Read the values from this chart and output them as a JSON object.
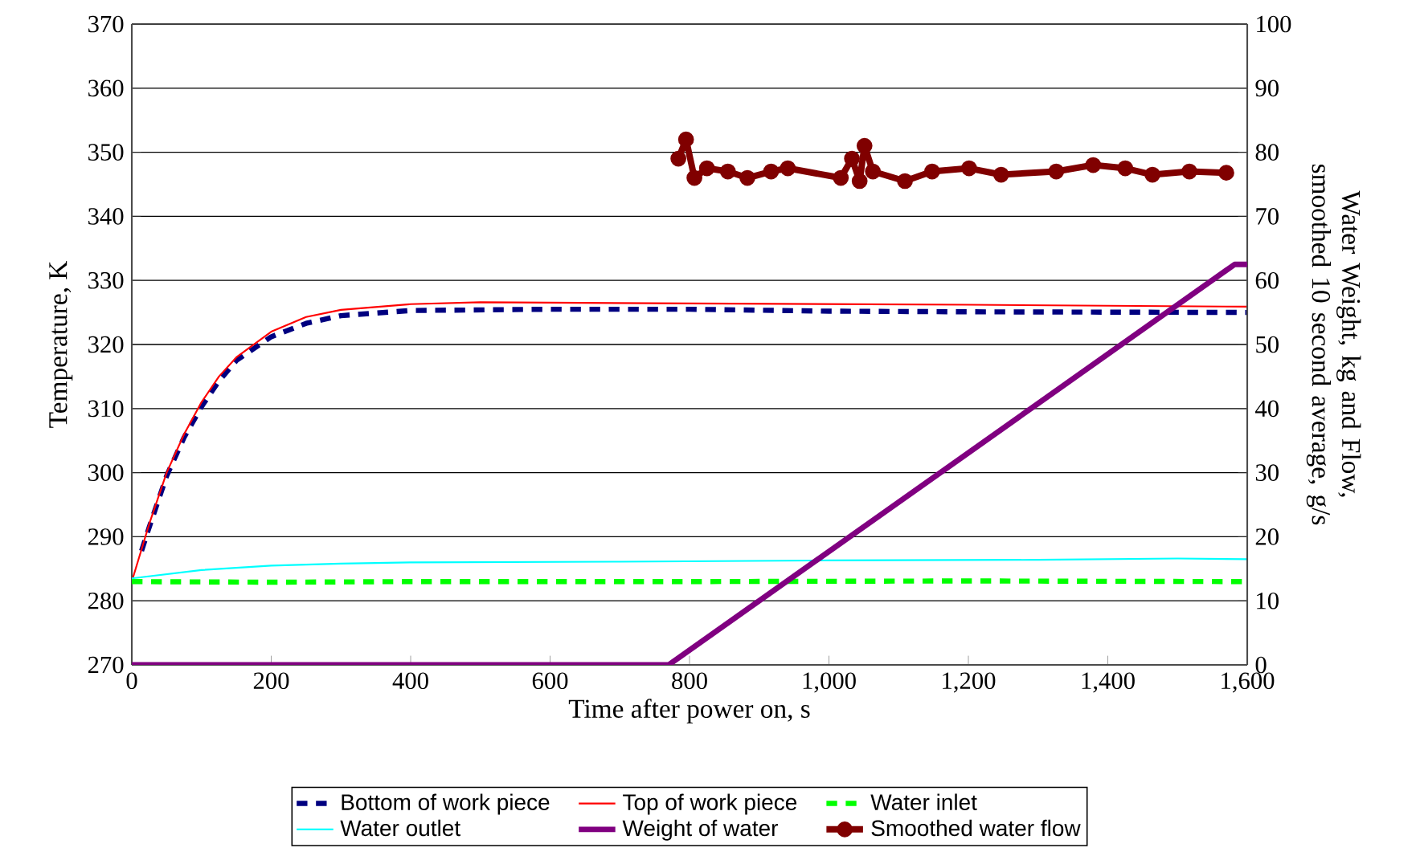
{
  "chart_data": {
    "type": "line",
    "xlabel": "Time after power on, s",
    "ylabel": "Temperature, K",
    "y2label": "Water Weight, kg and Flow, smoothed 10 second average, g/s",
    "xlim": [
      0,
      1600
    ],
    "xticks": [
      0,
      200,
      400,
      600,
      800,
      {
        "value": 1000,
        "label": "1,000"
      },
      {
        "value": 1200,
        "label": "1,200"
      },
      {
        "value": 1400,
        "label": "1,400"
      },
      {
        "value": 1600,
        "label": "1,600"
      }
    ],
    "ylim": [
      270,
      370
    ],
    "yticks": [
      270,
      280,
      290,
      300,
      310,
      320,
      330,
      340,
      350,
      360,
      370
    ],
    "y2lim": [
      0,
      100
    ],
    "y2ticks": [
      0,
      10,
      20,
      30,
      40,
      50,
      60,
      70,
      80,
      90,
      100
    ],
    "grid": "y",
    "legend": "bottom",
    "series": [
      {
        "name": "Bottom of work piece",
        "color": "#000080",
        "line_style": "dashed",
        "x": [
          14,
          25,
          50,
          75,
          100,
          125,
          150,
          200,
          250,
          300,
          400,
          600,
          800,
          1000,
          1200,
          1600
        ],
        "values": [
          287.8,
          291.5,
          299.5,
          305.5,
          310.3,
          314.3,
          317.5,
          321.2,
          323.3,
          324.5,
          325.3,
          325.5,
          325.5,
          325.2,
          325.1,
          325
        ]
      },
      {
        "name": "Top of work piece",
        "color": "#ff0000",
        "line_style": "solid",
        "x": [
          0,
          25,
          50,
          75,
          100,
          125,
          150,
          200,
          250,
          300,
          400,
          500,
          800,
          1200,
          1600
        ],
        "values": [
          283,
          292,
          300,
          306,
          311,
          315,
          318,
          322,
          324.3,
          325.4,
          326.3,
          326.6,
          326.4,
          326.2,
          325.9
        ]
      },
      {
        "name": "Water inlet",
        "color": "#00ff00",
        "line_style": "dashed",
        "x": [
          0,
          200,
          400,
          800,
          1200,
          1600
        ],
        "values": [
          283,
          282.9,
          283,
          283,
          283.1,
          283
        ]
      },
      {
        "name": "Water outlet",
        "color": "#00ffff",
        "line_style": "solid",
        "x": [
          0,
          100,
          200,
          300,
          400,
          700,
          1000,
          1300,
          1500,
          1600
        ],
        "values": [
          283.5,
          284.8,
          285.5,
          285.8,
          286,
          286.1,
          286.3,
          286.4,
          286.6,
          286.5
        ]
      },
      {
        "name": "Weight of water",
        "color": "#800080",
        "line_style": "solid",
        "axis": "y2",
        "x": [
          0,
          770,
          1582,
          1600
        ],
        "values": [
          0,
          0,
          62.5,
          62.5
        ]
      },
      {
        "name": "Smoothed water flow",
        "color": "#800000",
        "line_style": "solid",
        "marker": "circle",
        "axis": "y2",
        "x": [
          784,
          795,
          807,
          825,
          855,
          883,
          917,
          941,
          1017,
          1033,
          1044,
          1051,
          1063,
          1109,
          1148,
          1201,
          1247,
          1326,
          1379,
          1425,
          1464,
          1517,
          1570
        ],
        "values": [
          79,
          82,
          76,
          77.5,
          77,
          76,
          77,
          77.5,
          76,
          79,
          75.5,
          81,
          77,
          75.5,
          77,
          77.5,
          76.5,
          77,
          78,
          77.5,
          76.5,
          77,
          76.8
        ]
      }
    ]
  }
}
